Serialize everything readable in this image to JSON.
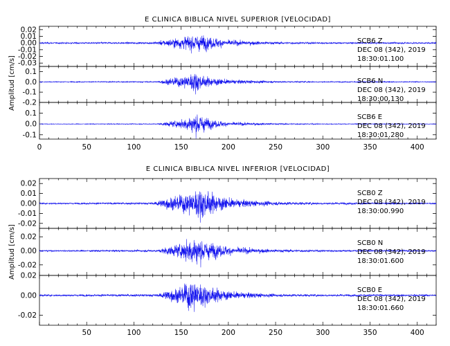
{
  "chart_data": [
    {
      "type": "line",
      "title": "E CLINICA BIBLICA NIVEL SUPERIOR [VELOCIDAD]",
      "ylabel": "Amplitud [cm/s]",
      "xlim": [
        0,
        420
      ],
      "x_ticks": [
        0,
        50,
        100,
        150,
        200,
        250,
        300,
        350,
        400
      ],
      "series": [
        {
          "name": "SCB6 Z",
          "label_lines": [
            "SCB6   Z",
            "DEC 08 (342), 2019",
            "18:30:01.100"
          ],
          "ylim": [
            -0.035,
            0.025
          ],
          "y_ticks": [
            -0.03,
            -0.02,
            -0.01,
            0.0,
            0.01,
            0.02
          ],
          "y_tick_labels": [
            "-0.03",
            "-0.02",
            "-0.01",
            "0.00",
            "0.01",
            "0.02"
          ],
          "peak_time": 160,
          "envelope": [
            [
              0,
              0.0015
            ],
            [
              120,
              0.002
            ],
            [
              135,
              0.007
            ],
            [
              150,
              0.012
            ],
            [
              165,
              0.018
            ],
            [
              180,
              0.013
            ],
            [
              200,
              0.006
            ],
            [
              250,
              0.0025
            ],
            [
              300,
              0.0018
            ],
            [
              420,
              0.0015
            ]
          ]
        },
        {
          "name": "SCB6 N",
          "label_lines": [
            "SCB6   N",
            "DEC 08 (342), 2019",
            "18:30:00.130"
          ],
          "ylim": [
            -0.2,
            0.15
          ],
          "y_ticks": [
            -0.2,
            -0.1,
            0.0,
            0.1
          ],
          "y_tick_labels": [
            "-0.2",
            "-0.1",
            "0.0",
            "0.1"
          ],
          "peak_time": 168,
          "envelope": [
            [
              0,
              0.006
            ],
            [
              125,
              0.008
            ],
            [
              135,
              0.04
            ],
            [
              150,
              0.07
            ],
            [
              165,
              0.14
            ],
            [
              175,
              0.07
            ],
            [
              200,
              0.03
            ],
            [
              250,
              0.012
            ],
            [
              300,
              0.008
            ],
            [
              420,
              0.006
            ]
          ]
        },
        {
          "name": "SCB6 E",
          "label_lines": [
            "SCB6   E",
            "DEC 08 (342), 2019",
            "18:30:01.280"
          ],
          "ylim": [
            -0.14,
            0.2
          ],
          "y_ticks": [
            -0.1,
            0.0,
            0.1
          ],
          "y_tick_labels": [
            "-0.1",
            "0.0",
            "0.1"
          ],
          "peak_time": 168,
          "envelope": [
            [
              0,
              0.004
            ],
            [
              125,
              0.006
            ],
            [
              135,
              0.03
            ],
            [
              150,
              0.05
            ],
            [
              167,
              0.15
            ],
            [
              180,
              0.06
            ],
            [
              200,
              0.025
            ],
            [
              250,
              0.01
            ],
            [
              300,
              0.006
            ],
            [
              420,
              0.004
            ]
          ]
        }
      ]
    },
    {
      "type": "line",
      "title": "E CLINICA BIBLICA NIVEL INFERIOR [VELOCIDAD]",
      "ylabel": "Amplitud [cm/s]",
      "xlim": [
        0,
        420
      ],
      "x_ticks": [
        50,
        100,
        150,
        200,
        250,
        300,
        350,
        400
      ],
      "series": [
        {
          "name": "SCB0 Z",
          "label_lines": [
            "SCB0   Z",
            "DEC 08 (342), 2019",
            "18:30:00.990"
          ],
          "ylim": [
            -0.025,
            0.025
          ],
          "y_ticks": [
            -0.02,
            -0.01,
            0.0,
            0.01,
            0.02
          ],
          "y_tick_labels": [
            "-0.02",
            "-0.01",
            "0.00",
            "0.01",
            "0.02"
          ],
          "peak_time": 170,
          "envelope": [
            [
              0,
              0.001
            ],
            [
              120,
              0.0015
            ],
            [
              135,
              0.008
            ],
            [
              150,
              0.012
            ],
            [
              170,
              0.022
            ],
            [
              185,
              0.013
            ],
            [
              205,
              0.006
            ],
            [
              250,
              0.0025
            ],
            [
              300,
              0.0015
            ],
            [
              420,
              0.001
            ]
          ]
        },
        {
          "name": "SCB0 N",
          "label_lines": [
            "SCB0   N",
            "DEC 08 (342), 2019",
            "18:30:01.600"
          ],
          "ylim": [
            -0.035,
            0.032
          ],
          "y_ticks": [
            -0.02,
            0.0,
            0.02
          ],
          "y_tick_labels": [
            "-0.02",
            "0.00",
            "0.02"
          ],
          "peak_time": 165,
          "envelope": [
            [
              0,
              0.0015
            ],
            [
              125,
              0.002
            ],
            [
              135,
              0.008
            ],
            [
              150,
              0.014
            ],
            [
              165,
              0.03
            ],
            [
              180,
              0.016
            ],
            [
              205,
              0.007
            ],
            [
              250,
              0.003
            ],
            [
              300,
              0.002
            ],
            [
              420,
              0.0015
            ]
          ]
        },
        {
          "name": "SCB0 E",
          "label_lines": [
            "SCB0   E",
            "DEC 08 (342), 2019",
            "18:30:01.660"
          ],
          "ylim": [
            -0.03,
            0.02
          ],
          "y_ticks": [
            -0.02,
            0.0,
            0.02
          ],
          "y_tick_labels": [
            "-0.02",
            "0.00",
            "0.02"
          ],
          "peak_time": 162,
          "envelope": [
            [
              0,
              0.0012
            ],
            [
              125,
              0.0018
            ],
            [
              135,
              0.007
            ],
            [
              150,
              0.012
            ],
            [
              162,
              0.024
            ],
            [
              178,
              0.012
            ],
            [
              205,
              0.005
            ],
            [
              250,
              0.002
            ],
            [
              300,
              0.0015
            ],
            [
              420,
              0.0012
            ]
          ]
        }
      ]
    }
  ]
}
